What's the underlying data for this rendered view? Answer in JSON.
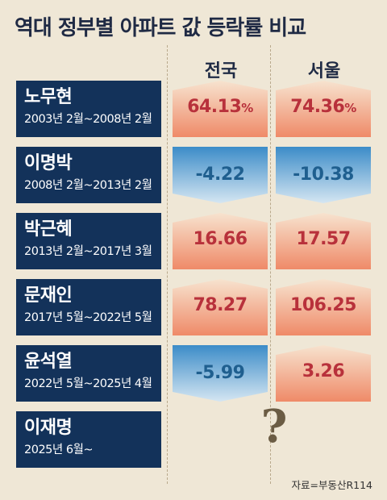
{
  "title": "역대 정부별 아파트 값 등락률 비교",
  "source": "자료=부동산R114",
  "unknown_mark": "?",
  "chart_data": {
    "type": "table",
    "title": "역대 정부별 아파트 값 등락률 비교",
    "columns": [
      "전국",
      "서울"
    ],
    "unit": "%",
    "rows": [
      {
        "name": "노무현",
        "period": "2003년 2월~2008년 2월",
        "values": [
          64.13,
          74.36
        ],
        "labels": [
          "64.13",
          "74.36"
        ],
        "show_pct": true
      },
      {
        "name": "이명박",
        "period": "2008년 2월~2013년 2월",
        "values": [
          -4.22,
          -10.38
        ],
        "labels": [
          "-4.22",
          "-10.38"
        ],
        "show_pct": false
      },
      {
        "name": "박근혜",
        "period": "2013년 2월~2017년 3월",
        "values": [
          16.66,
          17.57
        ],
        "labels": [
          "16.66",
          "17.57"
        ],
        "show_pct": false
      },
      {
        "name": "문재인",
        "period": "2017년 5월~2022년 5월",
        "values": [
          78.27,
          106.25
        ],
        "labels": [
          "78.27",
          "106.25"
        ],
        "show_pct": false
      },
      {
        "name": "윤석열",
        "period": "2022년 5월~2025년 4월",
        "values": [
          -5.99,
          3.26
        ],
        "labels": [
          "-5.99",
          "3.26"
        ],
        "show_pct": false
      },
      {
        "name": "이재명",
        "period": "2025년 6월~",
        "values": [
          null,
          null
        ],
        "labels": [
          null,
          null
        ],
        "show_pct": false
      }
    ]
  },
  "colors": {
    "label_bg": "#13325a",
    "positive_top": "#f7e3cf",
    "positive_bottom": "#ef8a68",
    "negative_top": "#3c8cc8",
    "negative_bottom": "#d5e6f2",
    "positive_text": "#b8313b",
    "negative_text": "#1f5f8f"
  }
}
